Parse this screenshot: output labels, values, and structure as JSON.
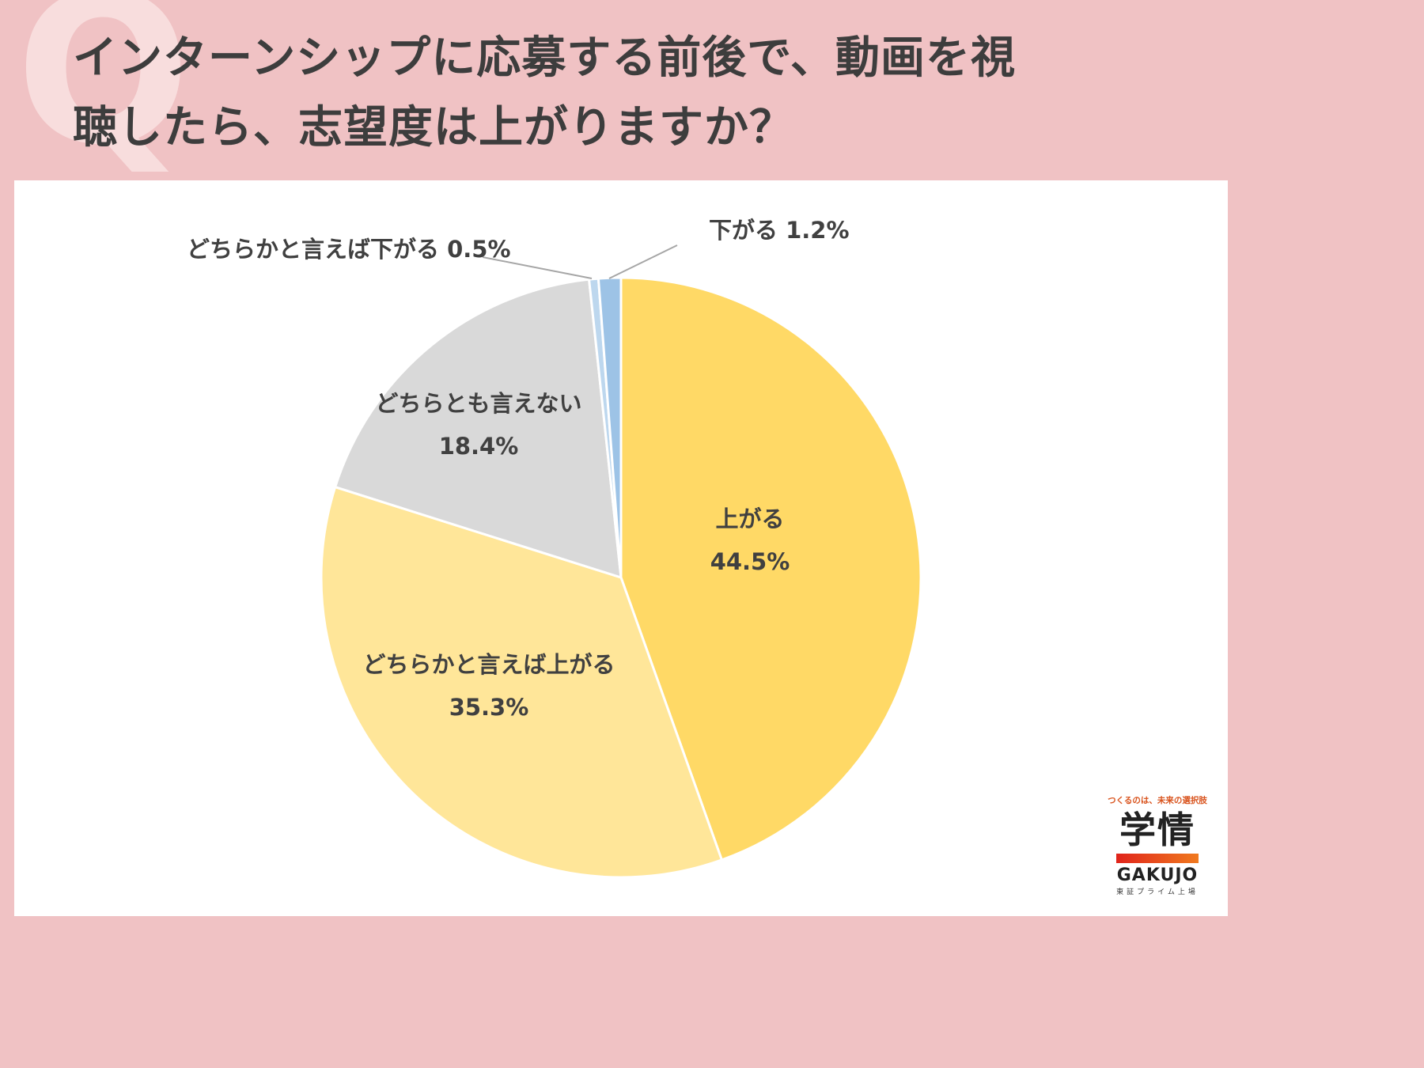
{
  "title_line1": "インターンシップに応募する前後で、動画を視",
  "title_line2": "聴したら、志望度は上がりますか？",
  "q_mark": "Q",
  "logo": {
    "tagline": "つくるのは、未来の選択肢",
    "kanji": "学情",
    "name": "GAKUJO",
    "sub": "東証プライム上場"
  },
  "chart_data": {
    "type": "pie",
    "start": "12 o'clock",
    "direction": "clockwise",
    "slices": [
      {
        "label": "上がる",
        "value": 44.5,
        "value_label": "44.5%",
        "color": "#ffd966"
      },
      {
        "label": "どちらかと言えば上がる",
        "value": 35.3,
        "value_label": "35.3%",
        "color": "#ffe699"
      },
      {
        "label": "どちらとも言えない",
        "value": 18.4,
        "value_label": "18.4%",
        "color": "#d9d9d9"
      },
      {
        "label": "どちらかと言えば下がる",
        "value": 0.5,
        "value_label": "0.5%",
        "color": "#bdd7ee"
      },
      {
        "label": "下がる",
        "value": 1.2,
        "value_label": "1.2%",
        "color": "#9dc3e6"
      }
    ]
  }
}
